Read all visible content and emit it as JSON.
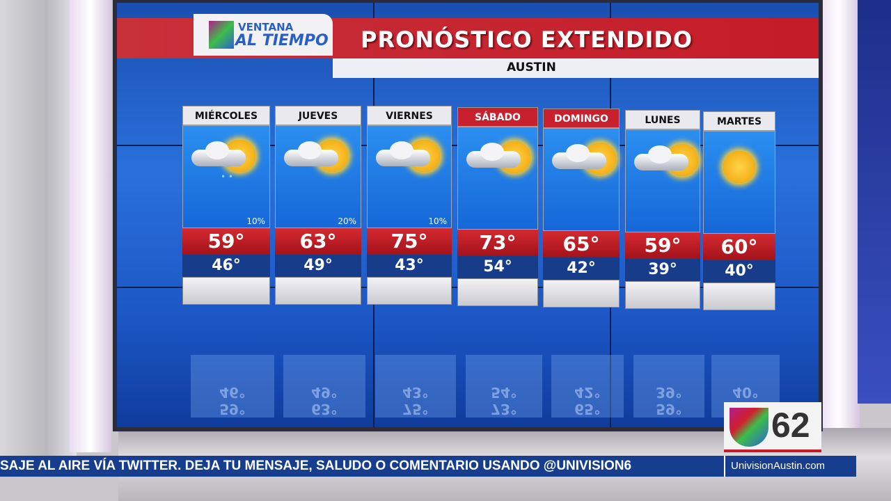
{
  "graphic": {
    "logo_line1": "VENTANA",
    "logo_line2": "AL TIEMPO",
    "title": "PRONÓSTICO EXTENDIDO",
    "location": "AUSTIN"
  },
  "days": [
    {
      "name": "MIÉRCOLES",
      "icon": "partly-cloudy-rain-icon",
      "precip": "10%",
      "high": "59°",
      "low": "46°",
      "weekend": false
    },
    {
      "name": "JUEVES",
      "icon": "partly-cloudy-icon",
      "precip": "20%",
      "high": "63°",
      "low": "49°",
      "weekend": false
    },
    {
      "name": "VIERNES",
      "icon": "partly-cloudy-icon",
      "precip": "10%",
      "high": "75°",
      "low": "43°",
      "weekend": false
    },
    {
      "name": "SÁBADO",
      "icon": "partly-cloudy-icon",
      "precip": "",
      "high": "73°",
      "low": "54°",
      "weekend": true
    },
    {
      "name": "DOMINGO",
      "icon": "partly-cloudy-icon",
      "precip": "",
      "high": "65°",
      "low": "42°",
      "weekend": true
    },
    {
      "name": "LUNES",
      "icon": "partly-cloudy-icon",
      "precip": "",
      "high": "59°",
      "low": "39°",
      "weekend": false
    },
    {
      "name": "MARTES",
      "icon": "sunny-icon",
      "precip": "",
      "high": "60°",
      "low": "40°",
      "weekend": false
    }
  ],
  "ticker": {
    "text": "SAJE AL AIRE VÍA TWITTER. DEJA TU MENSAJE, SALUDO O COMENTARIO USANDO @UNIVISION6",
    "website": "UnivisionAustin.com"
  },
  "station_bug": {
    "channel": "62"
  },
  "colors": {
    "red": "#c8202c",
    "blue": "#1f62d0",
    "navy": "#163d8e"
  }
}
